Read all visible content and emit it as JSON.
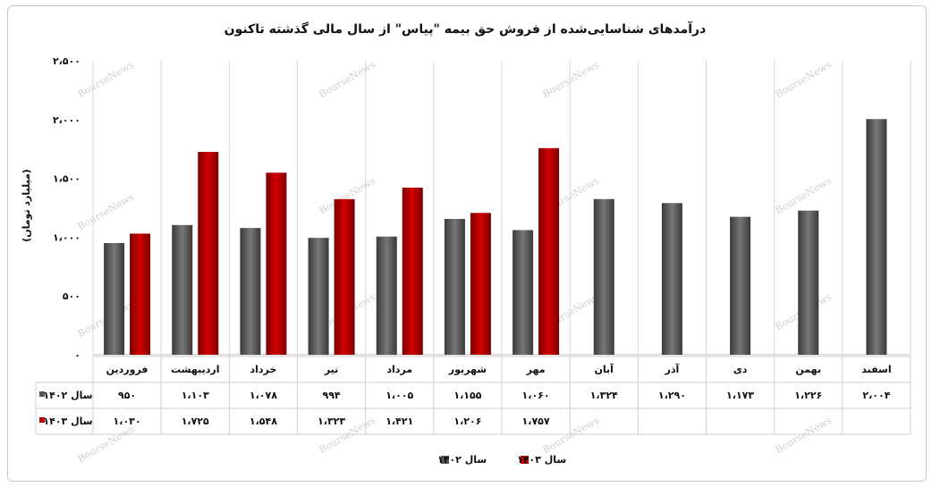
{
  "chart_data": {
    "type": "bar",
    "title": "درآمدهای شناسایی‌شده از فروش حق بیمه \"پیاس\" از سال مالی گذشته تاکنون",
    "ylabel": "(میلیارد تومان)",
    "ylim": [
      0,
      2500
    ],
    "yticks": [
      0,
      500,
      1000,
      1500,
      2000,
      2500
    ],
    "ytick_labels": [
      "۰",
      "۵۰۰",
      "۱،۰۰۰",
      "۱،۵۰۰",
      "۲،۰۰۰",
      "۲،۵۰۰"
    ],
    "categories": [
      "فروردین",
      "اردیبهشت",
      "خرداد",
      "تیر",
      "مرداد",
      "شهریور",
      "مهر",
      "آبان",
      "آذر",
      "دی",
      "بهمن",
      "اسفند"
    ],
    "grid": "vertical",
    "legend_position": "bottom",
    "series": [
      {
        "name": "سال ۱۴۰۲",
        "color": "#555555",
        "values": [
          950,
          1103,
          1078,
          994,
          1005,
          1155,
          1060,
          1324,
          1290,
          1173,
          1226,
          2004
        ],
        "labels": [
          "۹۵۰",
          "۱،۱۰۳",
          "۱،۰۷۸",
          "۹۹۴",
          "۱،۰۰۵",
          "۱،۱۵۵",
          "۱،۰۶۰",
          "۱،۳۲۴",
          "۱،۲۹۰",
          "۱،۱۷۳",
          "۱،۲۲۶",
          "۲،۰۰۴"
        ]
      },
      {
        "name": "سال ۱۴۰۳",
        "color": "#b50000",
        "values": [
          1030,
          1725,
          1548,
          1323,
          1421,
          1206,
          1757,
          null,
          null,
          null,
          null,
          null
        ],
        "labels": [
          "۱،۰۳۰",
          "۱،۷۲۵",
          "۱،۵۴۸",
          "۱،۳۲۳",
          "۱،۴۲۱",
          "۱،۲۰۶",
          "۱،۷۵۷",
          "",
          "",
          "",
          "",
          ""
        ]
      }
    ],
    "watermark": "BourseNews"
  }
}
